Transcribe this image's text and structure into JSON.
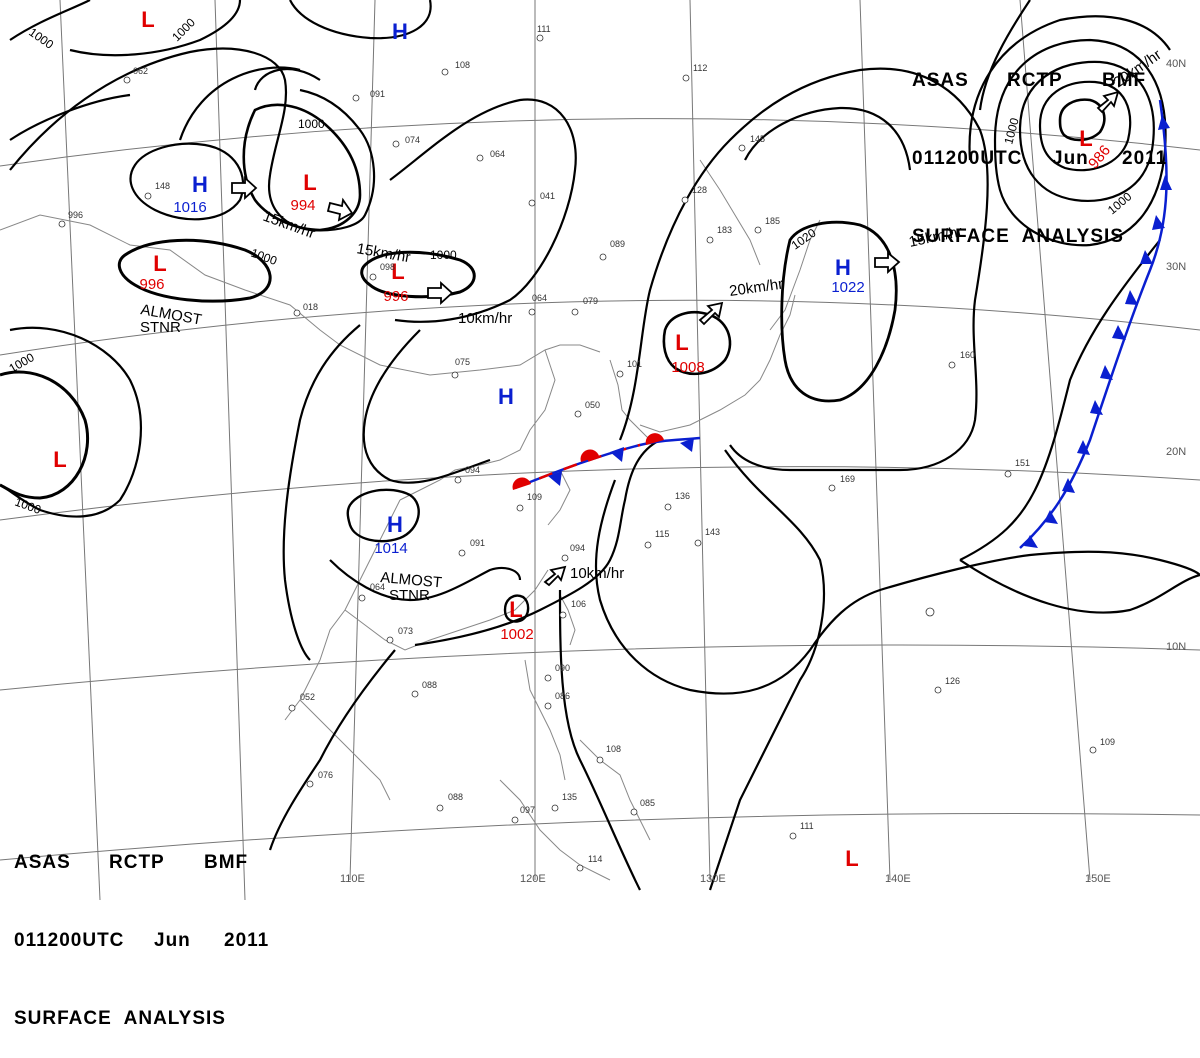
{
  "header": {
    "line1": [
      "ASAS",
      "RCTP",
      "BMF"
    ],
    "line2": [
      "011200UTC",
      "Jun",
      "2011"
    ],
    "line3": "SURFACE  ANALYSIS"
  },
  "colors": {
    "low": "#e00000",
    "high": "#0a1fd0",
    "isobar": "#000000",
    "grid": "#777777",
    "coast": "#888888"
  },
  "grid_labels": {
    "longitudes": [
      "110E",
      "120E",
      "130E",
      "140E",
      "150E"
    ],
    "latitudes": [
      "40N",
      "30N",
      "20N",
      "10N"
    ]
  },
  "pressure_centers": [
    {
      "type": "L",
      "value": ""
    },
    {
      "type": "H",
      "value": ""
    },
    {
      "type": "H",
      "value": "1016"
    },
    {
      "type": "L",
      "value": "994"
    },
    {
      "type": "L",
      "value": "996"
    },
    {
      "type": "L",
      "value": "996"
    },
    {
      "type": "H",
      "value": "1022"
    },
    {
      "type": "L",
      "value": "1008"
    },
    {
      "type": "L",
      "value": "986"
    },
    {
      "type": "L",
      "value": ""
    },
    {
      "type": "H",
      "value": ""
    },
    {
      "type": "H",
      "value": "1014"
    },
    {
      "type": "L",
      "value": "1002"
    },
    {
      "type": "L",
      "value": ""
    }
  ],
  "isobar_labels": [
    "1000",
    "1000",
    "1000",
    "1000",
    "1000",
    "1000",
    "1000",
    "1000",
    "1000",
    "1020"
  ],
  "movements": [
    "15km/hr",
    "15km/hr",
    "10km/hr",
    "20km/hr",
    "15km/hr",
    "10km/hr",
    "20km/hr"
  ],
  "notes": [
    [
      "ALMOST",
      "STNR"
    ],
    [
      "ALMOST",
      "STNR"
    ]
  ],
  "observations": [
    "111",
    "108",
    "091",
    "074",
    "064",
    "041",
    "089",
    "079",
    "064",
    "018",
    "075",
    "094",
    "109",
    "091",
    "094",
    "064",
    "073",
    "052",
    "088",
    "076",
    "088",
    "097",
    "114",
    "135",
    "085",
    "108",
    "086",
    "090",
    "106",
    "115",
    "143",
    "136",
    "169",
    "151",
    "160",
    "126",
    "111",
    "109",
    "185",
    "183",
    "128",
    "145",
    "112",
    "062",
    "101",
    "148",
    "098",
    "050",
    "996"
  ]
}
